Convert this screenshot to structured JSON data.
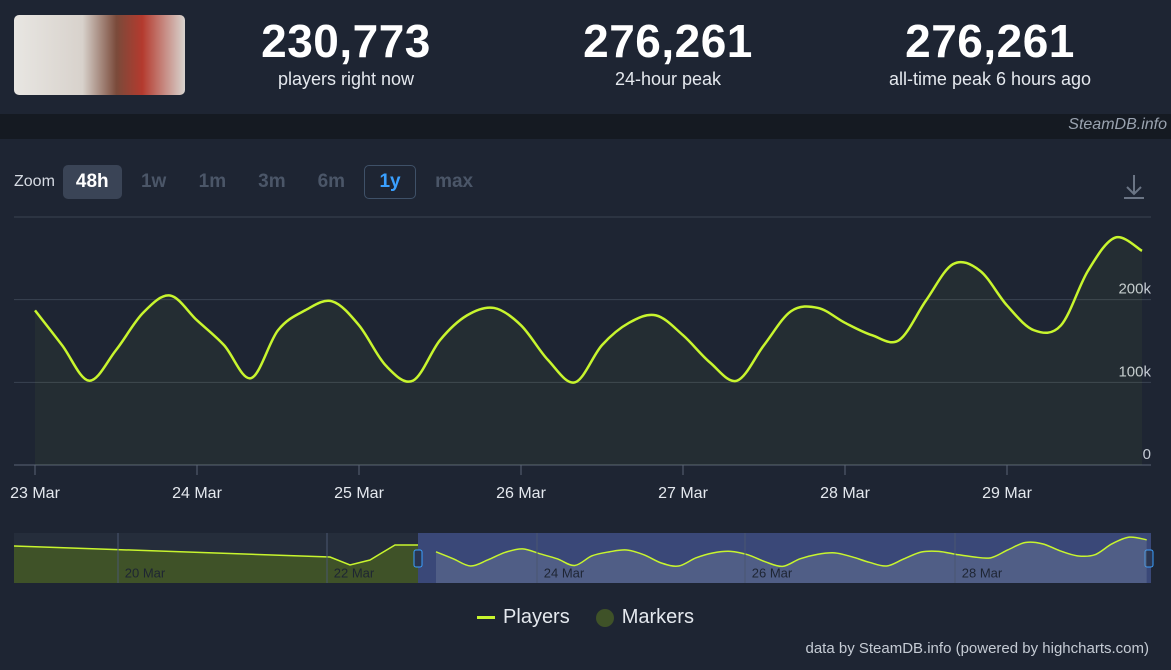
{
  "header": {
    "stats": [
      {
        "value": "230,773",
        "label": "players right now"
      },
      {
        "value": "276,261",
        "label": "24-hour peak"
      },
      {
        "value": "276,261",
        "label": "all-time peak 6 hours ago"
      }
    ],
    "brand": "SteamDB.info"
  },
  "zoom": {
    "label": "Zoom",
    "buttons": [
      "48h",
      "1w",
      "1m",
      "3m",
      "6m",
      "1y",
      "max"
    ]
  },
  "chart_data": {
    "type": "line",
    "categories": [
      "23 Mar",
      null,
      null,
      null,
      null,
      null,
      "24 Mar",
      null,
      null,
      null,
      null,
      null,
      "25 Mar",
      null,
      null,
      null,
      null,
      null,
      "26 Mar",
      null,
      null,
      null,
      null,
      null,
      "27 Mar",
      null,
      null,
      null,
      null,
      null,
      "28 Mar",
      null,
      null,
      null,
      null,
      null,
      "29 Mar",
      null,
      null,
      null,
      null,
      null
    ],
    "series": [
      {
        "name": "Players",
        "color": "#c8f52e",
        "values": [
          187000,
          145000,
          102000,
          139000,
          184000,
          205000,
          175000,
          145000,
          105000,
          163000,
          187000,
          198000,
          169000,
          120000,
          102000,
          151000,
          181000,
          190000,
          169000,
          127000,
          100000,
          145000,
          172000,
          181000,
          157000,
          124000,
          102000,
          145000,
          186000,
          190000,
          172000,
          157000,
          151000,
          199000,
          243000,
          235000,
          193000,
          163000,
          169000,
          235000,
          275000,
          259000
        ]
      }
    ],
    "markers_legend": {
      "name": "Markers",
      "color": "#3f5228"
    },
    "ylim": [
      0,
      300000
    ],
    "yticks": [
      0,
      {
        "value": 100000,
        "label": "100k"
      },
      {
        "value": 200000,
        "label": "200k"
      }
    ],
    "grid": true,
    "navigator_labels": [
      "20 Mar",
      "22 Mar",
      "24 Mar",
      "26 Mar",
      "28 Mar"
    ]
  },
  "credit": "data by SteamDB.info (powered by highcharts.com)"
}
